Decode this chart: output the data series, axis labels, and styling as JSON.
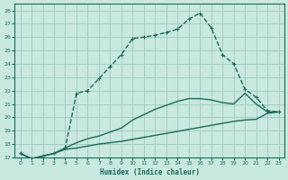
{
  "xlabel": "Humidex (Indice chaleur)",
  "xlim": [
    -0.5,
    23.5
  ],
  "ylim": [
    17,
    28.5
  ],
  "xticks": [
    0,
    1,
    2,
    3,
    4,
    5,
    6,
    7,
    8,
    9,
    10,
    11,
    12,
    13,
    14,
    15,
    16,
    17,
    18,
    19,
    20,
    21,
    22,
    23
  ],
  "yticks": [
    17,
    18,
    19,
    20,
    21,
    22,
    23,
    24,
    25,
    26,
    27,
    28
  ],
  "bg_color": "#c8e8e0",
  "line_color": "#1a6b5a",
  "grid_color": "#a0c8c0",
  "lines": [
    {
      "x": [
        0,
        1,
        2,
        3,
        4,
        5,
        6,
        7,
        8,
        9,
        10,
        11,
        12,
        13,
        14,
        15,
        16,
        17,
        18,
        19,
        20,
        21,
        22,
        23
      ],
      "y": [
        17.3,
        16.9,
        17.1,
        17.3,
        17.6,
        17.7,
        17.85,
        18.0,
        18.1,
        18.2,
        18.35,
        18.5,
        18.65,
        18.8,
        18.95,
        19.1,
        19.25,
        19.4,
        19.55,
        19.7,
        19.8,
        19.85,
        20.3,
        20.4
      ],
      "marker": null,
      "linestyle": "-",
      "linewidth": 1.0
    },
    {
      "x": [
        0,
        1,
        2,
        3,
        4,
        5,
        6,
        7,
        8,
        9,
        10,
        11,
        12,
        13,
        14,
        15,
        16,
        17,
        18,
        19,
        20,
        21,
        22,
        23
      ],
      "y": [
        17.3,
        16.9,
        17.1,
        17.3,
        17.7,
        18.1,
        18.4,
        18.6,
        18.9,
        19.2,
        19.8,
        20.2,
        20.6,
        20.9,
        21.2,
        21.4,
        21.4,
        21.3,
        21.1,
        21.0,
        21.8,
        21.0,
        20.4,
        20.4
      ],
      "marker": null,
      "linestyle": "-",
      "linewidth": 1.0
    },
    {
      "x": [
        0,
        1,
        2,
        3,
        4,
        5,
        6,
        7,
        8,
        9,
        10,
        11,
        12,
        13,
        14,
        15,
        16,
        17,
        18,
        19,
        20,
        21,
        22,
        23
      ],
      "y": [
        17.3,
        16.9,
        17.1,
        17.3,
        17.7,
        21.8,
        22.0,
        22.9,
        23.8,
        24.7,
        25.9,
        26.0,
        26.15,
        26.35,
        26.6,
        27.35,
        27.8,
        26.7,
        24.7,
        24.0,
        22.1,
        21.5,
        20.5,
        20.4
      ],
      "marker": "+",
      "linestyle": "--",
      "linewidth": 1.0
    }
  ]
}
